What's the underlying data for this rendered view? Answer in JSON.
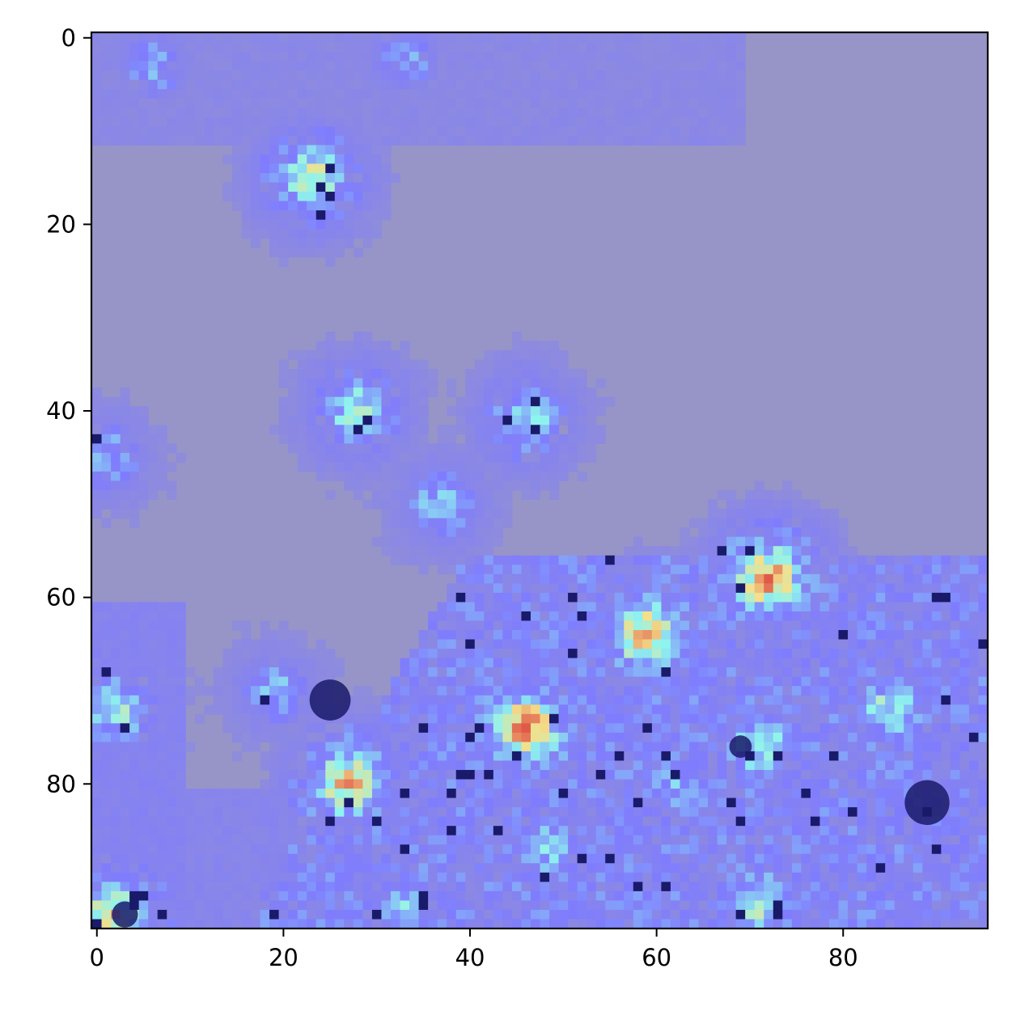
{
  "chart_data": {
    "type": "heatmap",
    "title": "",
    "xlabel": "",
    "ylabel": "",
    "image_size": [
      96,
      96
    ],
    "xlim": [
      -0.5,
      95.5
    ],
    "ylim": [
      95.5,
      -0.5
    ],
    "xticks": [
      0,
      20,
      40,
      60,
      80
    ],
    "yticks": [
      0,
      20,
      40,
      60,
      80
    ],
    "xtick_labels": [
      "0",
      "20",
      "40",
      "60",
      "80"
    ],
    "ytick_labels": [
      "0",
      "20",
      "40",
      "60",
      "80"
    ],
    "grid": false,
    "legend": "none",
    "colormap": "jet overlay (alpha ~0.4) on grayscale image",
    "colors": {
      "background_tint": "#9795c8",
      "low": "#7f7cff",
      "mid": "#8ff4ee",
      "high": "#f4e08a",
      "peak": "#e05a4a",
      "dark": "#1a1a6a"
    },
    "hotspots": [
      {
        "row": 15,
        "col": 23,
        "intensity": 0.7
      },
      {
        "row": 40,
        "col": 28,
        "intensity": 0.62
      },
      {
        "row": 41,
        "col": 46,
        "intensity": 0.58
      },
      {
        "row": 50,
        "col": 37,
        "intensity": 0.5
      },
      {
        "row": 45,
        "col": 1,
        "intensity": 0.45
      },
      {
        "row": 3,
        "col": 6,
        "intensity": 0.4
      },
      {
        "row": 2,
        "col": 33,
        "intensity": 0.4
      },
      {
        "row": 72,
        "col": 2,
        "intensity": 0.6
      },
      {
        "row": 58,
        "col": 72,
        "intensity": 0.88
      },
      {
        "row": 64,
        "col": 59,
        "intensity": 0.84
      },
      {
        "row": 74,
        "col": 46,
        "intensity": 0.9
      },
      {
        "row": 80,
        "col": 27,
        "intensity": 0.82
      },
      {
        "row": 76,
        "col": 71,
        "intensity": 0.62
      },
      {
        "row": 72,
        "col": 85,
        "intensity": 0.6
      },
      {
        "row": 93,
        "col": 71,
        "intensity": 0.64
      },
      {
        "row": 94,
        "col": 2,
        "intensity": 0.78
      },
      {
        "row": 87,
        "col": 48,
        "intensity": 0.52
      },
      {
        "row": 93,
        "col": 33,
        "intensity": 0.5
      },
      {
        "row": 70,
        "col": 19,
        "intensity": 0.45
      },
      {
        "row": 80,
        "col": 62,
        "intensity": 0.45
      }
    ]
  }
}
